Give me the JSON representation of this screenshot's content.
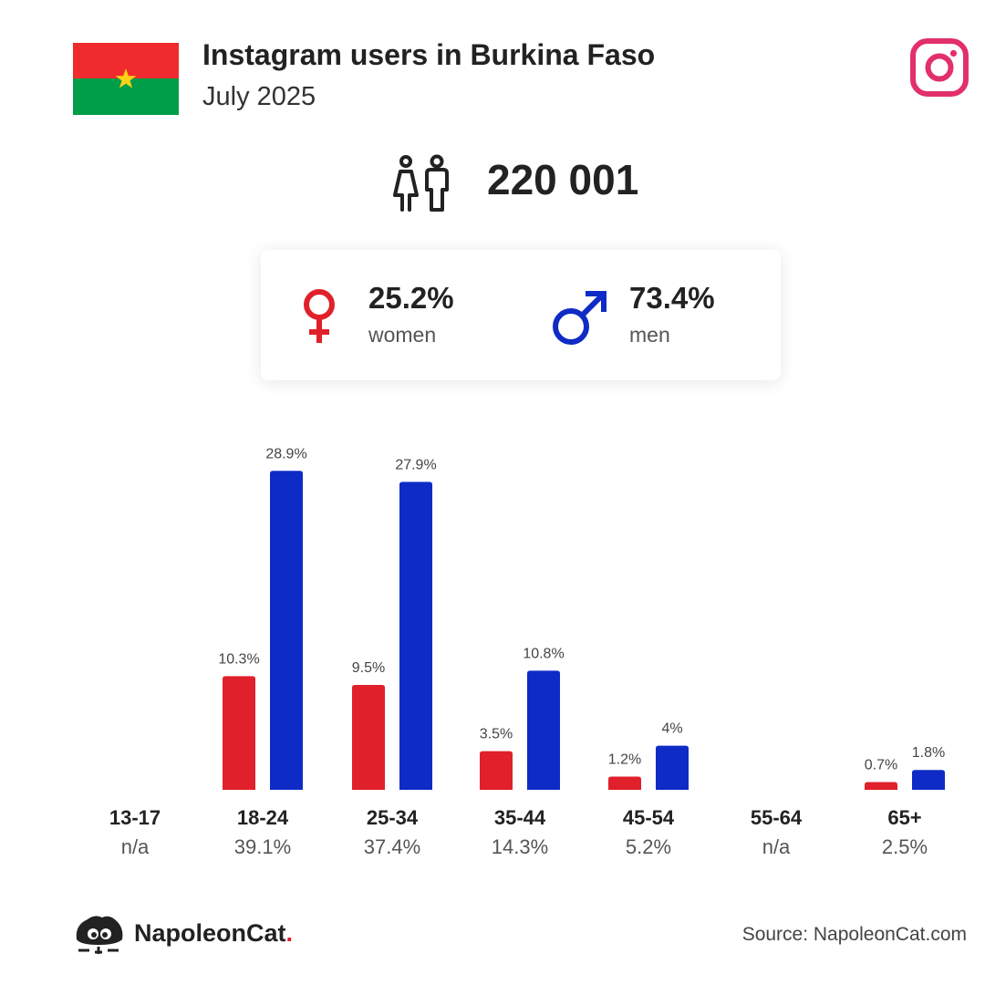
{
  "header": {
    "title": "Instagram users in Burkina Faso",
    "subtitle": "July 2025",
    "flag_colors": {
      "top": "#EF2B2D",
      "bottom": "#009E49",
      "star": "#FCD116"
    },
    "brand_logo_icon": "instagram-icon",
    "brand_logo_color": "#E1306C"
  },
  "total": {
    "icon": "users-icon",
    "value": "220 001"
  },
  "gender": {
    "women": {
      "icon": "female-icon",
      "percent": "25.2%",
      "label": "women",
      "color": "#E0202A"
    },
    "men": {
      "icon": "male-icon",
      "percent": "73.4%",
      "label": "men",
      "color": "#0F2BC6"
    }
  },
  "chart_data": {
    "type": "bar",
    "categories": [
      "13-17",
      "18-24",
      "25-34",
      "35-44",
      "45-54",
      "55-64",
      "65+"
    ],
    "category_totals": [
      "n/a",
      "39.1%",
      "37.4%",
      "14.3%",
      "5.2%",
      "n/a",
      "2.5%"
    ],
    "series": [
      {
        "values": [
          null,
          10.3,
          9.5,
          3.5,
          1.2,
          null,
          0.7
        ],
        "labels": [
          "",
          "10.3%",
          "9.5%",
          "3.5%",
          "1.2%",
          "",
          "0.7%"
        ],
        "color": "#E0202A"
      },
      {
        "values": [
          null,
          28.9,
          27.9,
          10.8,
          4,
          null,
          1.8
        ],
        "labels": [
          "",
          "28.9%",
          "27.9%",
          "10.8%",
          "4%",
          "",
          "1.8%"
        ],
        "color": "#0F2BC6"
      }
    ],
    "title": "",
    "xlabel": "",
    "ylabel": "",
    "grid": false,
    "legend": "none"
  },
  "footer": {
    "brand_icon": "napoleoncat-icon",
    "brand_name": "NapoleonCat",
    "brand_dot": ".",
    "source": "Source: NapoleonCat.com"
  }
}
